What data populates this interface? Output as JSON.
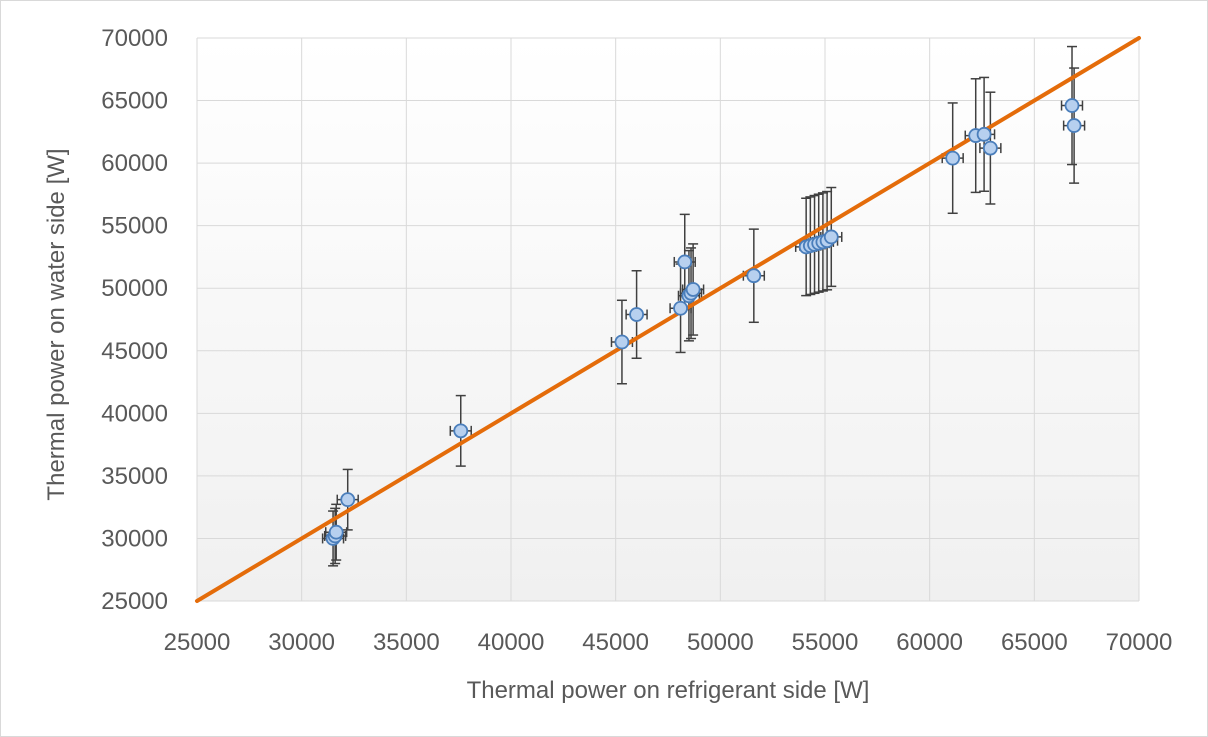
{
  "chart_data": {
    "type": "scatter",
    "title": "",
    "xlabel": "Thermal power on refrigerant side [W]",
    "ylabel": "Thermal power on water side [W]",
    "xlim": [
      25000,
      70000
    ],
    "ylim": [
      25000,
      70000
    ],
    "x_ticks": [
      "25000",
      "30000",
      "35000",
      "40000",
      "45000",
      "50000",
      "55000",
      "60000",
      "65000",
      "70000"
    ],
    "y_ticks": [
      "25000",
      "30000",
      "35000",
      "40000",
      "45000",
      "50000",
      "55000",
      "60000",
      "65000",
      "70000"
    ],
    "grid": true,
    "legend": "none",
    "marker_fill": "#b7d0ef",
    "marker_stroke": "#4a7ebb",
    "line_color": "#e46c0a",
    "errorbar_color": "#404040",
    "series": [
      {
        "type": "scatter",
        "y_error_pct": 7.3,
        "x_error": 500,
        "points": [
          {
            "x": 31500,
            "y": 30000
          },
          {
            "x": 31600,
            "y": 30200
          },
          {
            "x": 31650,
            "y": 30500
          },
          {
            "x": 32200,
            "y": 33100
          },
          {
            "x": 37600,
            "y": 38600
          },
          {
            "x": 45300,
            "y": 45700
          },
          {
            "x": 46000,
            "y": 47900
          },
          {
            "x": 48100,
            "y": 48400
          },
          {
            "x": 48300,
            "y": 52100
          },
          {
            "x": 48500,
            "y": 49400
          },
          {
            "x": 48600,
            "y": 49600
          },
          {
            "x": 48700,
            "y": 49900
          },
          {
            "x": 51600,
            "y": 51000
          },
          {
            "x": 54100,
            "y": 53300
          },
          {
            "x": 54300,
            "y": 53400
          },
          {
            "x": 54500,
            "y": 53500
          },
          {
            "x": 54700,
            "y": 53600
          },
          {
            "x": 54900,
            "y": 53700
          },
          {
            "x": 55100,
            "y": 53800
          },
          {
            "x": 55300,
            "y": 54100
          },
          {
            "x": 61100,
            "y": 60400
          },
          {
            "x": 62200,
            "y": 62200
          },
          {
            "x": 62600,
            "y": 62300
          },
          {
            "x": 62900,
            "y": 61200
          },
          {
            "x": 66800,
            "y": 64600
          },
          {
            "x": 66900,
            "y": 63000
          }
        ]
      },
      {
        "type": "line",
        "x": [
          25000,
          70000
        ],
        "y": [
          25000,
          70000
        ]
      }
    ]
  }
}
